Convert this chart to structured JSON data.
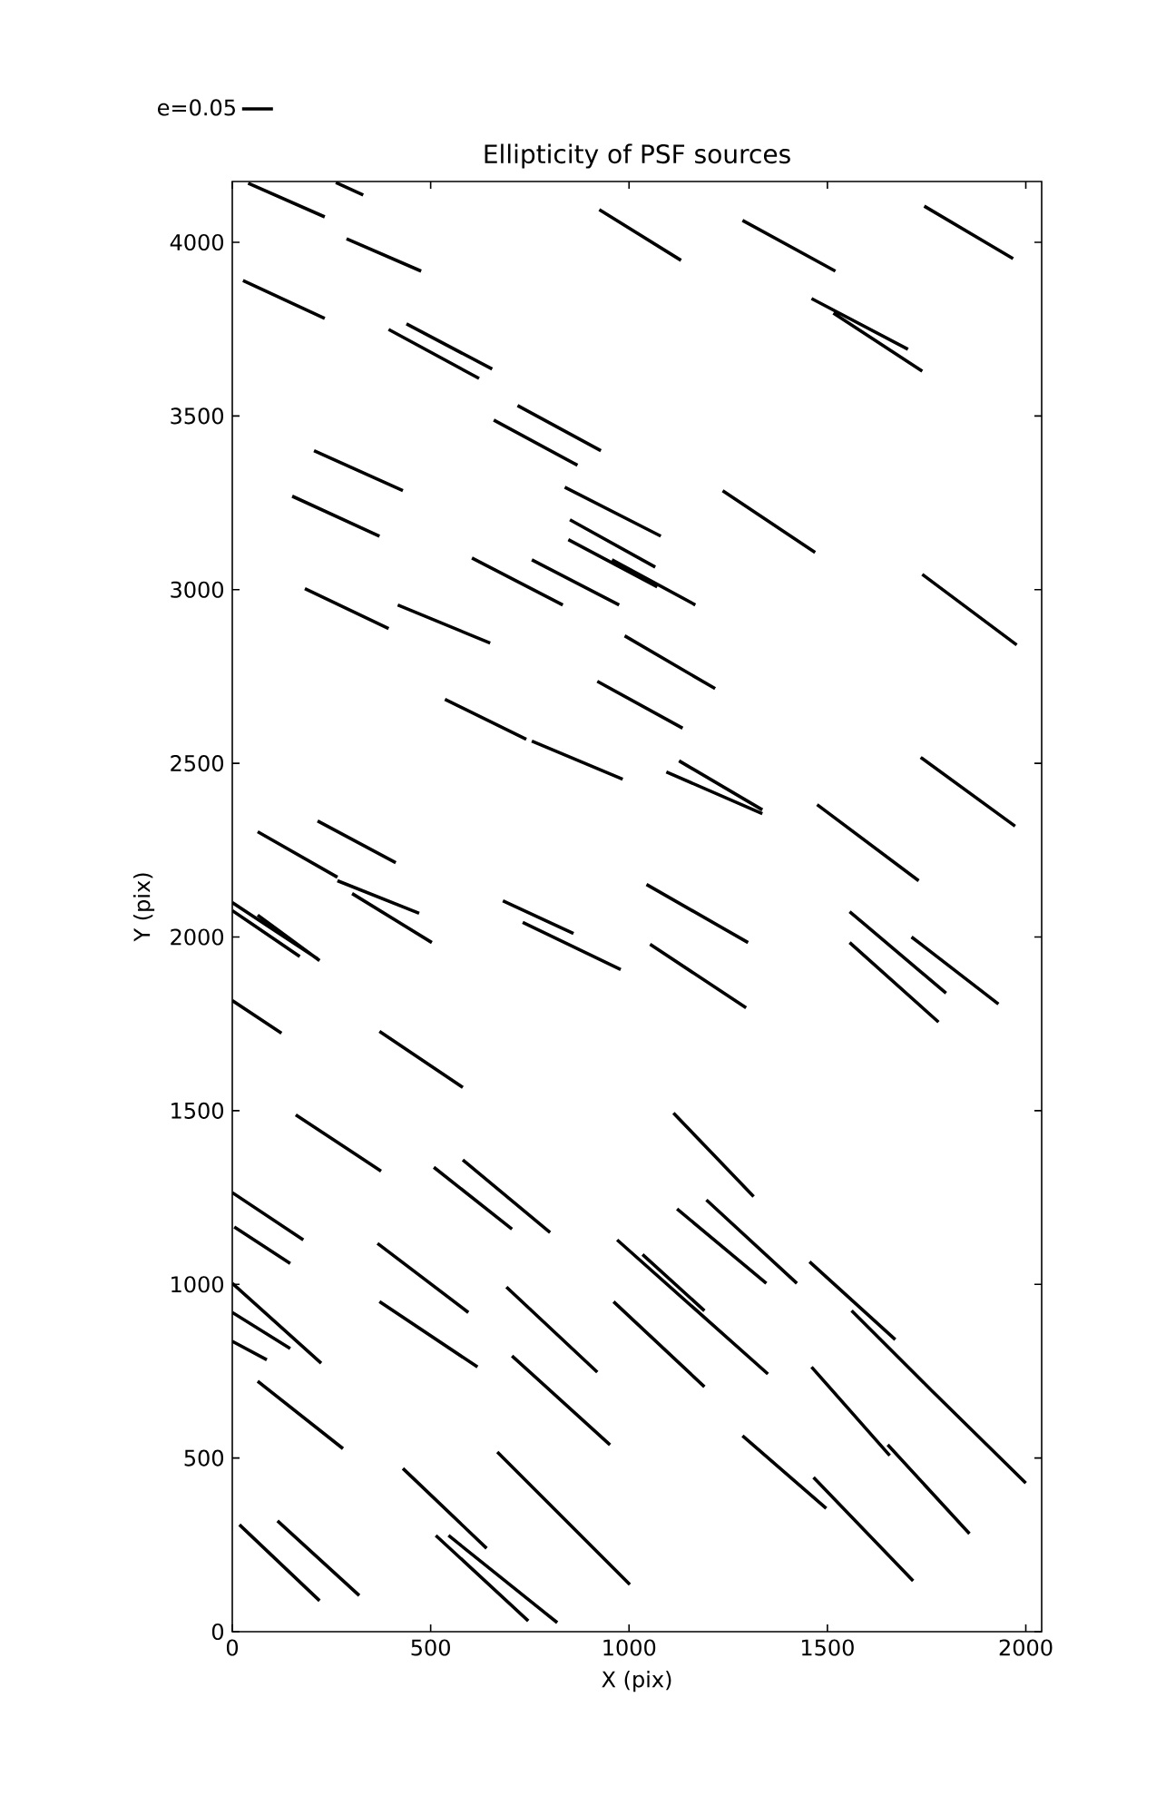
{
  "chart_data": {
    "type": "line",
    "title": "Ellipticity of PSF sources",
    "xlabel": "X (pix)",
    "ylabel": "Y (pix)",
    "xlim": [
      0,
      2040
    ],
    "ylim": [
      0,
      4175
    ],
    "xticks": [
      0,
      500,
      1000,
      1500,
      2000
    ],
    "yticks": [
      0,
      500,
      1000,
      1500,
      2000,
      2500,
      3000,
      3500,
      4000
    ],
    "legend": "top left",
    "series": [
      {
        "name": "e=0.05",
        "color": "#000000",
        "x": [
          40,
          233,
          null,
          261,
          330,
          null,
          925,
          1131,
          null,
          1286,
          1520,
          null,
          1744,
          1968,
          null,
          288,
          476,
          null,
          27,
          233,
          null,
          1460,
          1703,
          null,
          1515,
          1739,
          null,
          439,
          655,
          null,
          394,
          622,
          null,
          719,
          929,
          null,
          659,
          870,
          null,
          206,
          430,
          null,
          151,
          371,
          null,
          838,
          1080,
          null,
          1236,
          1469,
          null,
          851,
          1066,
          null,
          847,
          1071,
          null,
          957,
          1167,
          null,
          604,
          833,
          null,
          755,
          975,
          null,
          183,
          394,
          null,
          417,
          650,
          null,
          1739,
          1977,
          null,
          989,
          1217,
          null,
          920,
          1135,
          null,
          536,
          741,
          null,
          755,
          984,
          null,
          1126,
          1336,
          null,
          1094,
          1336,
          null,
          1735,
          1973,
          null,
          1474,
          1730,
          null,
          215,
          412,
          null,
          64,
          265,
          null,
          265,
          471,
          null,
          302,
          503,
          null,
          682,
          860,
          null,
          732,
          979,
          null,
          1044,
          1300,
          null,
          1053,
          1295,
          null,
          1556,
          1799,
          null,
          1556,
          1780,
          null,
          1712,
          1931,
          null,
          0,
          215,
          null,
          64,
          220,
          null,
          0,
          170,
          null,
          0,
          124,
          null,
          371,
          581,
          null,
          160,
          375,
          null,
          1112,
          1314,
          null,
          508,
          705,
          null,
          581,
          801,
          null,
          0,
          179,
          null,
          5,
          146,
          null,
          366,
          595,
          null,
          970,
          1350,
          null,
          1034,
          1190,
          null,
          1121,
          1346,
          null,
          1195,
          1423,
          null,
          1455,
          1671,
          null,
          0,
          224,
          null,
          0,
          146,
          null,
          0,
          87,
          null,
          371,
          618,
          null,
          64,
          279,
          null,
          691,
          920,
          null,
          961,
          1190,
          null,
          705,
          952,
          null,
          1561,
          1762,
          null,
          1762,
          2000,
          null,
          1460,
          1657,
          null,
          1652,
          1858,
          null,
          1286,
          1497,
          null,
          1465,
          1716,
          null,
          430,
          641,
          null,
          668,
          1002,
          null,
          18,
          220,
          null,
          114,
          320,
          null,
          513,
          746,
          null,
          545,
          819
        ],
        "values": [
          4170,
          4073,
          null,
          4172,
          4136,
          null,
          4094,
          3948,
          null,
          4063,
          3917,
          null,
          4104,
          3953,
          null,
          4010,
          3917,
          null,
          3890,
          3781,
          null,
          3838,
          3692,
          null,
          3796,
          3629,
          null,
          3765,
          3635,
          null,
          3749,
          3608,
          null,
          3530,
          3400,
          null,
          3488,
          3358,
          null,
          3400,
          3285,
          null,
          3269,
          3154,
          null,
          3295,
          3154,
          null,
          3285,
          3107,
          null,
          3201,
          3065,
          null,
          3144,
          3008,
          null,
          3086,
          2956,
          null,
          3091,
          2956,
          null,
          3086,
          2956,
          null,
          3003,
          2888,
          null,
          2956,
          2846,
          null,
          3044,
          2841,
          null,
          2867,
          2715,
          null,
          2736,
          2601,
          null,
          2684,
          2569,
          null,
          2564,
          2454,
          null,
          2507,
          2366,
          null,
          2475,
          2355,
          null,
          2517,
          2319,
          null,
          2381,
          2162,
          null,
          2334,
          2214,
          null,
          2303,
          2172,
          null,
          2162,
          2068,
          null,
          2125,
          1984,
          null,
          2104,
          2010,
          null,
          2042,
          1906,
          null,
          2151,
          1984,
          null,
          1979,
          1796,
          null,
          2073,
          1838,
          null,
          1984,
          1755,
          null,
          2000,
          1807,
          null,
          2099,
          1937,
          null,
          2063,
          1932,
          null,
          2076,
          1944,
          null,
          1817,
          1723,
          null,
          1728,
          1567,
          null,
          1488,
          1326,
          null,
          1493,
          1253,
          null,
          1337,
          1159,
          null,
          1358,
          1149,
          null,
          1264,
          1128,
          null,
          1165,
          1060,
          null,
          1118,
          919,
          null,
          1128,
          742,
          null,
          1086,
          924,
          null,
          1217,
          1003,
          null,
          1243,
          1003,
          null,
          1065,
          841,
          null,
          1003,
          773,
          null,
          919,
          815,
          null,
          836,
          783,
          null,
          950,
          762,
          null,
          721,
          527,
          null,
          992,
          747,
          null,
          950,
          705,
          null,
          794,
          538,
          null,
          924,
          695,
          null,
          695,
          428,
          null,
          762,
          507,
          null,
          538,
          282,
          null,
          564,
          355,
          null,
          444,
          146,
          null,
          470,
          240,
          null,
          517,
          136,
          null,
          308,
          89,
          null,
          319,
          104,
          null,
          277,
          31,
          null,
          277,
          26
        ]
      }
    ]
  }
}
